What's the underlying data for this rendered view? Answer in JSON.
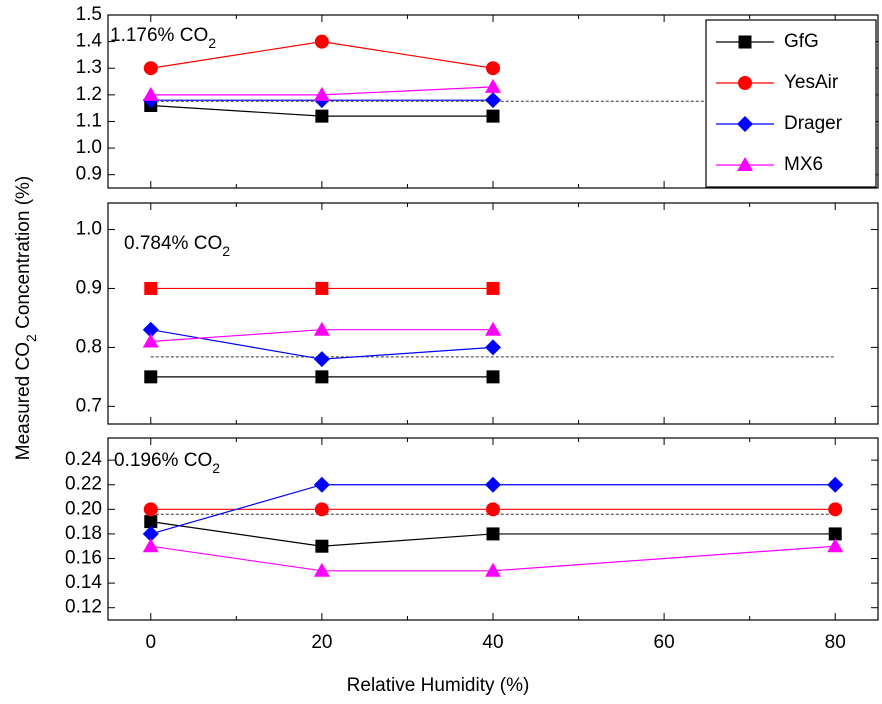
{
  "chart_data": [
    {
      "type": "line",
      "annotation": {
        "text": "1.176% CO",
        "sub": "2"
      },
      "reference": 1.176,
      "ylabel": {
        "before": "Measured CO",
        "sub": "2",
        "after": " Concentration (%)"
      },
      "legend": "upper right",
      "x": [
        0,
        20,
        40
      ],
      "xlim": [
        -5,
        85
      ],
      "xticks": [
        0,
        20,
        40,
        60,
        80
      ],
      "xminor": [
        10,
        30,
        50,
        70
      ],
      "ylim": [
        0.85,
        1.5
      ],
      "yticks": [
        0.9,
        {
          "value": 1,
          "label": "1.0"
        },
        1.1,
        1.2,
        1.3,
        1.4,
        1.5
      ],
      "series": [
        {
          "name": "GfG",
          "color": "#000000",
          "marker": "square",
          "values": [
            1.16,
            1.12,
            1.12
          ]
        },
        {
          "name": "YesAir",
          "color": "#ff0000",
          "marker": "circle",
          "values": [
            1.3,
            1.4,
            1.3
          ]
        },
        {
          "name": "Drager",
          "color": "#0000ff",
          "marker": "diamond",
          "values": [
            1.18,
            1.18,
            1.18
          ]
        },
        {
          "name": "MX6",
          "color": "#ff00ff",
          "marker": "triangle",
          "values": [
            1.2,
            1.2,
            1.23
          ]
        }
      ]
    },
    {
      "type": "line",
      "annotation": {
        "text": "0.784% CO",
        "sub": "2"
      },
      "reference": 0.784,
      "x": [
        0,
        20,
        40
      ],
      "xlim": [
        -5,
        85
      ],
      "xticks": [
        0,
        20,
        40,
        60,
        80
      ],
      "xminor": [
        10,
        30,
        50,
        70
      ],
      "ylim": [
        0.67,
        1.045
      ],
      "yticks": [
        0.7,
        0.8,
        0.9,
        {
          "value": 1,
          "label": "1.0"
        }
      ],
      "series": [
        {
          "name": "GfG",
          "color": "#000000",
          "marker": "square",
          "values": [
            0.75,
            0.75,
            0.75
          ]
        },
        {
          "name": "YesAir",
          "color": "#ff0000",
          "marker": "square",
          "values": [
            0.9,
            0.9,
            0.9
          ]
        },
        {
          "name": "Drager",
          "color": "#0000ff",
          "marker": "diamond",
          "values": [
            0.83,
            0.78,
            0.8
          ]
        },
        {
          "name": "MX6",
          "color": "#ff00ff",
          "marker": "triangle",
          "values": [
            0.81,
            0.83,
            0.83
          ]
        }
      ]
    },
    {
      "type": "line",
      "annotation": {
        "text": "0.196% CO",
        "sub": "2"
      },
      "reference": 0.196,
      "xlabel": "Relative Humidity (%)",
      "x": [
        0,
        20,
        40,
        80
      ],
      "xlim": [
        -5,
        85
      ],
      "xticks": [
        0,
        20,
        40,
        60,
        80
      ],
      "xminor": [
        10,
        30,
        50,
        70
      ],
      "ylim": [
        0.11,
        0.258
      ],
      "yticks": [
        0.12,
        0.14,
        0.16,
        0.18,
        {
          "value": 0.2,
          "label": "0.20"
        },
        0.22,
        0.24
      ],
      "series": [
        {
          "name": "GfG",
          "color": "#000000",
          "marker": "square",
          "values": [
            0.19,
            0.17,
            0.18,
            0.18
          ]
        },
        {
          "name": "YesAir",
          "color": "#ff0000",
          "marker": "circle",
          "values": [
            0.2,
            0.2,
            0.2,
            0.2
          ]
        },
        {
          "name": "Drager",
          "color": "#0000ff",
          "marker": "diamond",
          "values": [
            0.18,
            0.22,
            0.22,
            0.22
          ]
        },
        {
          "name": "MX6",
          "color": "#ff00ff",
          "marker": "triangle",
          "values": [
            0.17,
            0.15,
            0.15,
            0.17
          ]
        }
      ]
    }
  ]
}
